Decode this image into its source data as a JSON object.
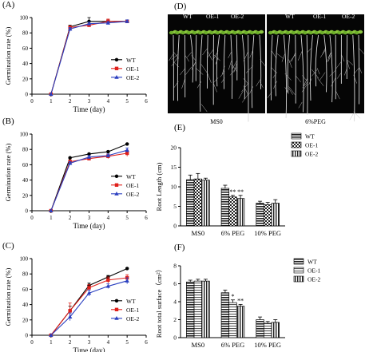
{
  "chart_data": [
    {
      "id": "A",
      "panel_label": "(A)",
      "type": "line",
      "xlabel": "Time (day)",
      "ylabel": "Germination rate (%)",
      "xlim": [
        0,
        6
      ],
      "ylim": [
        0,
        100
      ],
      "xticks": [
        0,
        1,
        2,
        3,
        4,
        5,
        6
      ],
      "yticks": [
        0,
        20,
        40,
        60,
        80,
        100
      ],
      "x": [
        1,
        2,
        3,
        4,
        5
      ],
      "legend_position": "right",
      "series": [
        {
          "name": "WT",
          "color": "#000000",
          "marker": "circle",
          "values": [
            0,
            88,
            95,
            95,
            95
          ],
          "errors": [
            0,
            2,
            5,
            2,
            2
          ]
        },
        {
          "name": "OE-1",
          "color": "#e0201b",
          "marker": "square",
          "values": [
            0,
            87,
            90,
            95,
            95
          ],
          "errors": [
            0,
            2,
            2,
            3,
            2
          ]
        },
        {
          "name": "OE-2",
          "color": "#2a3fc0",
          "marker": "triangle",
          "values": [
            0,
            85,
            92,
            93,
            95
          ],
          "errors": [
            0,
            2,
            2,
            2,
            2
          ]
        }
      ]
    },
    {
      "id": "B",
      "panel_label": "(B)",
      "type": "line",
      "xlabel": "Time (day)",
      "ylabel": "Germination rate (%)",
      "xlim": [
        0,
        6
      ],
      "ylim": [
        0,
        100
      ],
      "xticks": [
        0,
        1,
        2,
        3,
        4,
        5,
        6
      ],
      "yticks": [
        0,
        20,
        40,
        60,
        80,
        100
      ],
      "x": [
        1,
        2,
        3,
        4,
        5
      ],
      "legend_position": "right",
      "series": [
        {
          "name": "WT",
          "color": "#000000",
          "marker": "circle",
          "values": [
            0,
            69,
            74,
            77,
            87
          ],
          "errors": [
            0,
            1,
            1,
            1,
            1
          ]
        },
        {
          "name": "OE-1",
          "color": "#e0201b",
          "marker": "square",
          "values": [
            0,
            64,
            68,
            71,
            75
          ],
          "errors": [
            0,
            2,
            2,
            3,
            4
          ]
        },
        {
          "name": "OE-2",
          "color": "#2a3fc0",
          "marker": "triangle",
          "values": [
            0,
            62,
            70,
            72,
            79
          ],
          "errors": [
            0,
            2,
            2,
            2,
            3
          ]
        }
      ]
    },
    {
      "id": "C",
      "panel_label": "(C)",
      "type": "line",
      "xlabel": "Time (day)",
      "ylabel": "Germination rate (%)",
      "xlim": [
        0,
        6
      ],
      "ylim": [
        0,
        100
      ],
      "xticks": [
        0,
        1,
        2,
        3,
        4,
        5,
        6
      ],
      "yticks": [
        0,
        20,
        40,
        60,
        80,
        100
      ],
      "x": [
        1,
        2,
        3,
        4,
        5
      ],
      "legend_position": "right",
      "series": [
        {
          "name": "WT",
          "color": "#000000",
          "marker": "circle",
          "values": [
            0,
            32,
            65,
            76,
            87
          ],
          "errors": [
            0,
            6,
            3,
            2,
            1
          ]
        },
        {
          "name": "OE-1",
          "color": "#e0201b",
          "marker": "square",
          "values": [
            0,
            32,
            62,
            72,
            75
          ],
          "errors": [
            0,
            10,
            4,
            4,
            4
          ]
        },
        {
          "name": "OE-2",
          "color": "#2a3fc0",
          "marker": "triangle",
          "values": [
            0,
            24,
            55,
            64,
            71
          ],
          "errors": [
            0,
            5,
            4,
            3,
            4
          ]
        }
      ]
    },
    {
      "id": "E",
      "panel_label": "(E)",
      "type": "bar",
      "ylabel": "Root Length (cm)",
      "ylim": [
        0,
        20
      ],
      "yticks": [
        0,
        5,
        10,
        15,
        20
      ],
      "categories": [
        "MS0",
        "6% PEG",
        "10% PEG"
      ],
      "legend_position": "top-right",
      "annotations": [
        {
          "category": "6% PEG",
          "series": "OE-1",
          "text": "**"
        },
        {
          "category": "6% PEG",
          "series": "OE-2",
          "text": "**"
        }
      ],
      "series": [
        {
          "name": "WT",
          "pattern": "hstripe",
          "values": [
            11.8,
            9.6,
            5.8
          ],
          "errors": [
            1.2,
            0.8,
            0.5
          ]
        },
        {
          "name": "OE-1",
          "pattern": "check",
          "values": [
            12.0,
            7.4,
            5.4
          ],
          "errors": [
            1.4,
            0.4,
            0.6
          ]
        },
        {
          "name": "OE-2",
          "pattern": "vstripe",
          "values": [
            11.7,
            7.0,
            5.8
          ],
          "errors": [
            0.5,
            0.8,
            0.9
          ]
        }
      ]
    },
    {
      "id": "F",
      "panel_label": "(F)",
      "type": "bar",
      "ylabel": "Root total surface（cm²）",
      "ylim": [
        0,
        8
      ],
      "yticks": [
        0,
        2,
        4,
        6,
        8
      ],
      "categories": [
        "MS0",
        "6% PEG",
        "10% PEG"
      ],
      "legend_position": "top-right",
      "annotations": [
        {
          "category": "6% PEG",
          "series": "OE-1",
          "text": "*"
        },
        {
          "category": "6% PEG",
          "series": "OE-2",
          "text": "**"
        }
      ],
      "series": [
        {
          "name": "WT",
          "pattern": "hstripe",
          "values": [
            6.2,
            5.0,
            2.0
          ],
          "errors": [
            0.2,
            0.3,
            0.3
          ]
        },
        {
          "name": "OE-1",
          "pattern": "hstripe-light",
          "values": [
            6.3,
            3.9,
            1.6
          ],
          "errors": [
            0.2,
            0.3,
            0.2
          ]
        },
        {
          "name": "OE-2",
          "pattern": "vstripe",
          "values": [
            6.3,
            3.5,
            1.7
          ],
          "errors": [
            0.2,
            0.2,
            0.3
          ]
        }
      ]
    }
  ],
  "photo": {
    "panel_label": "(D)",
    "condition_labels": [
      "MS0",
      "6%PEG"
    ],
    "genotype_labels": [
      "WT",
      "OE-1",
      "OE-2"
    ]
  }
}
